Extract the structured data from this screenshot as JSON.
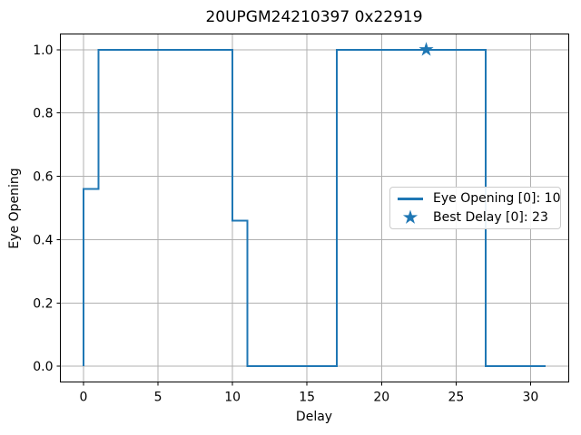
{
  "figure": {
    "title": "20UPGM24210397 0x22919",
    "xlabel": "Delay",
    "ylabel": "Eye Opening"
  },
  "legend": {
    "items": [
      {
        "icon": "line-sample-icon",
        "label": "Eye Opening [0]: 10"
      },
      {
        "icon": "star-icon",
        "label": "Best Delay [0]: 23"
      }
    ]
  },
  "colors": {
    "series": "#1f77b4",
    "grid": "#b0b0b0",
    "spine": "#000000",
    "text": "#000000",
    "legend_border": "#cccccc",
    "background": "#ffffff"
  },
  "chart_data": {
    "type": "line",
    "step_style": "pre",
    "title": "20UPGM24210397 0x22919",
    "xlabel": "Delay",
    "ylabel": "Eye Opening",
    "x": [
      0,
      1,
      2,
      3,
      4,
      5,
      6,
      7,
      8,
      9,
      10,
      11,
      12,
      13,
      14,
      15,
      16,
      17,
      18,
      19,
      20,
      21,
      22,
      23,
      24,
      25,
      26,
      27,
      28,
      29,
      30,
      31
    ],
    "y": [
      0,
      0.56,
      1,
      1,
      1,
      1,
      1,
      1,
      1,
      1,
      1,
      0.46,
      0,
      0,
      0,
      0,
      0,
      0,
      1,
      1,
      1,
      1,
      1,
      1,
      1,
      1,
      1,
      1,
      0,
      0,
      0,
      0
    ],
    "best_delay_marker": {
      "x": 23,
      "y": 1.0,
      "shape": "star"
    },
    "eye_opening_value": 10,
    "best_delay_value": 23,
    "xticks": [
      0,
      5,
      10,
      15,
      20,
      25,
      30
    ],
    "yticks": [
      0,
      0.2,
      0.4,
      0.6,
      0.8,
      1.0
    ],
    "xlim": [
      -1.55,
      32.55
    ],
    "ylim": [
      -0.05,
      1.05
    ],
    "grid": true,
    "legend_position": "center-right"
  }
}
